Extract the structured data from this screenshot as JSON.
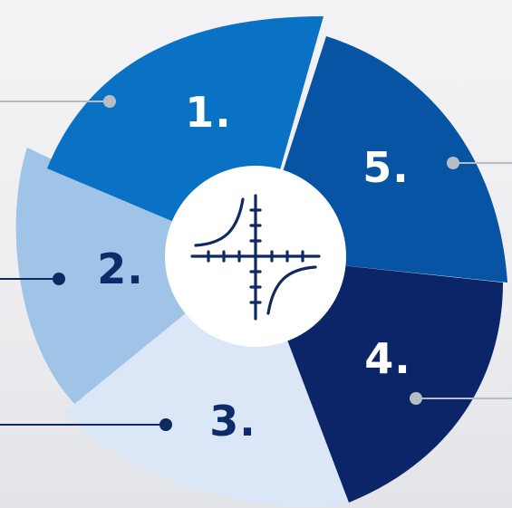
{
  "segments": [
    {
      "label": "1.",
      "color": "#0a72c4",
      "text_color": "#ffffff"
    },
    {
      "label": "2.",
      "color": "#9fc4e8",
      "text_color": "#0d2b6b"
    },
    {
      "label": "3.",
      "color": "#dbe6f6",
      "text_color": "#0d2b6b"
    },
    {
      "label": "4.",
      "color": "#0b2568",
      "text_color": "#ffffff"
    },
    {
      "label": "5.",
      "color": "#0654a3",
      "text_color": "#ffffff"
    }
  ],
  "center_icon": "hyperbola-graph-icon",
  "colors": {
    "center_circle": "#ffffff",
    "icon_stroke": "#0f2a60",
    "leader_gray": "#b8bcc4",
    "leader_dark": "#0f2a60"
  }
}
